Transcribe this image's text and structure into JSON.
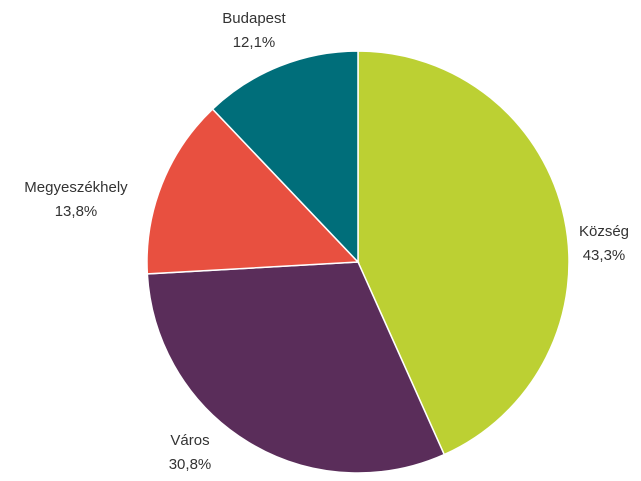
{
  "chart_data": {
    "type": "pie",
    "start_angle_deg": 0,
    "direction": "clockwise",
    "slices": [
      {
        "label": "Község",
        "value": 43.3,
        "value_label": "43,3%",
        "color": "#bcd033"
      },
      {
        "label": "Város",
        "value": 30.8,
        "value_label": "30,8%",
        "color": "#5a2d5a"
      },
      {
        "label": "Megyeszékhely",
        "value": 13.8,
        "value_label": "13,8%",
        "color": "#e85040"
      },
      {
        "label": "Budapest",
        "value": 12.1,
        "value_label": "12,1%",
        "color": "#006e7a"
      }
    ]
  }
}
